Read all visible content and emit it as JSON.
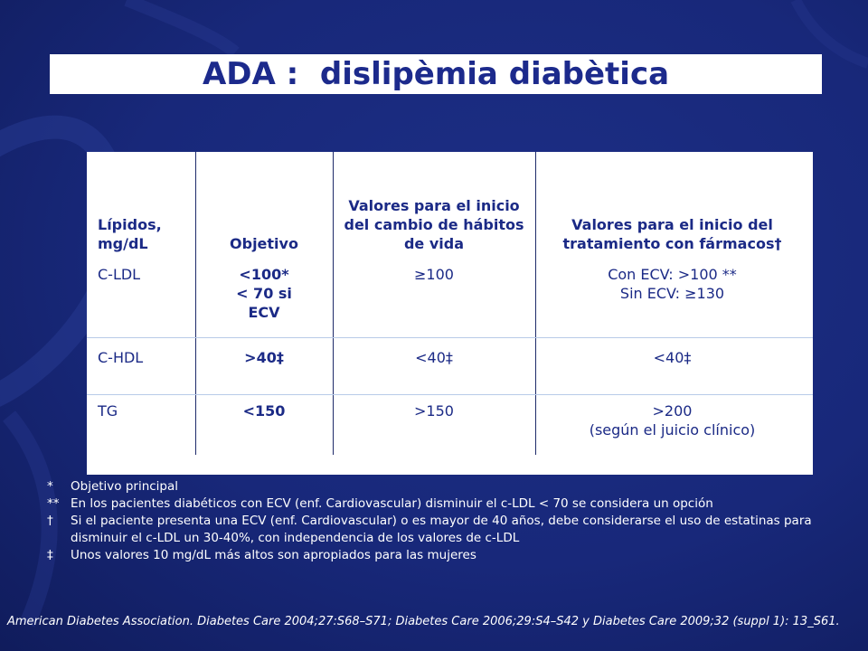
{
  "slide": {
    "title": "ADA :  dislipèmia diabètica"
  },
  "table": {
    "headers": {
      "lipids": "Lípidos, mg/dL",
      "goal": "Objetivo",
      "lifestyle": "Valores para el inicio del cambio de hábitos de vida",
      "drug": "Valores para el inicio del tratamiento con fármacos†"
    },
    "rows": [
      {
        "lipid": "C-LDL",
        "goal_line1": "<100*",
        "goal_line2": "< 70 si",
        "goal_line3": "ECV",
        "lifestyle": "≥100",
        "drug_line1": "Con ECV: >100 **",
        "drug_line2": "Sin ECV: ≥130"
      },
      {
        "lipid": "C-HDL",
        "goal": ">40‡",
        "lifestyle": "<40‡",
        "drug": "<40‡"
      },
      {
        "lipid": "TG",
        "goal": "<150",
        "lifestyle": ">150",
        "drug_line1": ">200",
        "drug_line2": "(según el juicio clínico)"
      }
    ]
  },
  "footnotes": [
    {
      "mark": "*",
      "text": "Objetivo principal"
    },
    {
      "mark": "**",
      "text": "En los pacientes diabéticos con ECV (enf. Cardiovascular) disminuir el c-LDL < 70 se considera un opción"
    },
    {
      "mark": "†",
      "text": "Si el paciente presenta una ECV (enf. Cardiovascular) o es mayor de 40 años, debe considerarse el uso de estatinas para disminuir el c-LDL un 30-40%, con independencia de los valores de c-LDL"
    },
    {
      "mark": "‡",
      "text": "Unos valores 10 mg/dL más altos son apropiados para las mujeres"
    }
  ],
  "citation": "American Diabetes Association. Diabetes Care 2004;27:S68–S71;  Diabetes Care 2006;29:S4–S42 y Diabetes Care 2009;32 (suppl 1): 13_S61.",
  "colors": {
    "background": "#18287a",
    "title_text": "#1c2a8c",
    "table_text": "#1b2a86",
    "footnote_text": "#ffffff"
  }
}
